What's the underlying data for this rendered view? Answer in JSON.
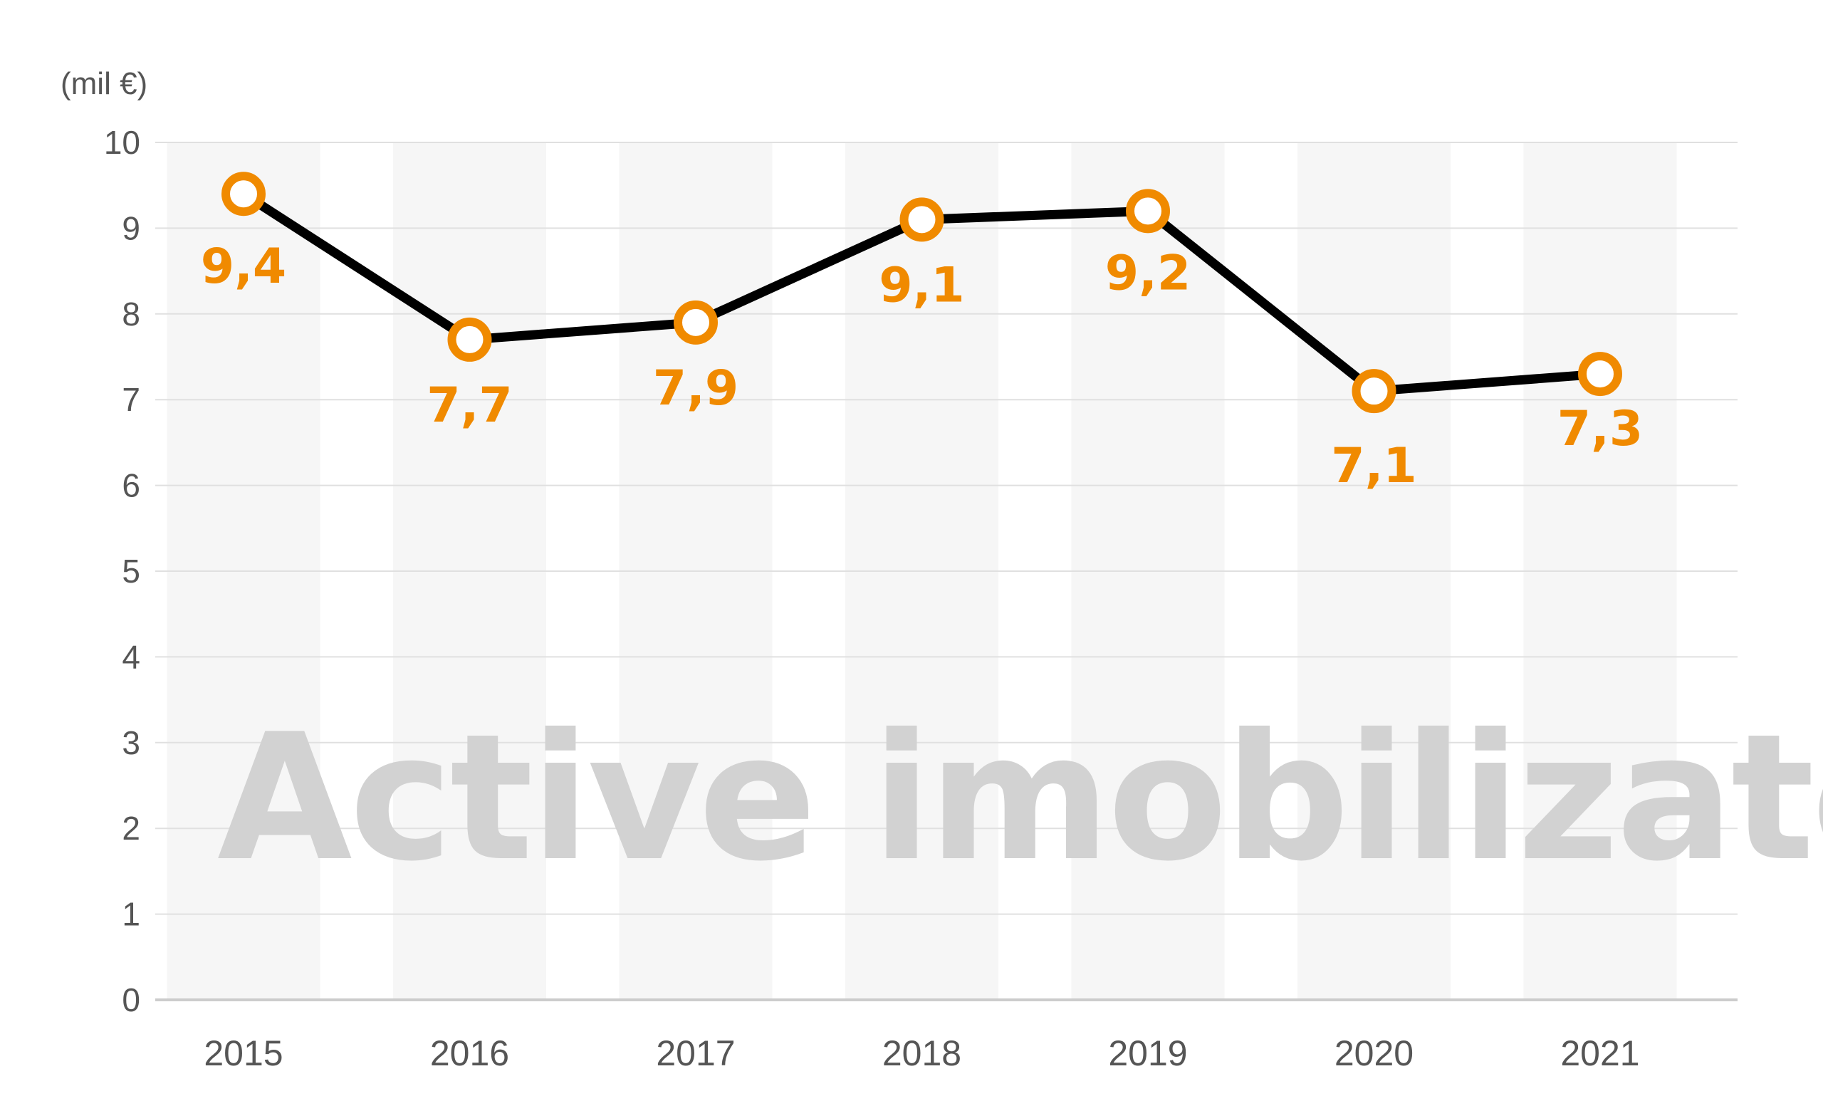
{
  "chart_data": {
    "type": "line",
    "unit_label": "(mil €)",
    "title_watermark": "Active imobilizate",
    "categories": [
      "2015",
      "2016",
      "2017",
      "2018",
      "2019",
      "2020",
      "2021"
    ],
    "y_ticks": [
      "0",
      "1",
      "2",
      "3",
      "4",
      "5",
      "6",
      "7",
      "8",
      "9",
      "10"
    ],
    "ylim": [
      0,
      10
    ],
    "series": [
      {
        "values": [
          9.4,
          7.7,
          7.9,
          9.1,
          9.2,
          7.1,
          7.3
        ],
        "labels": [
          "9,4",
          "7,7",
          "7,9",
          "9,1",
          "9,2",
          "7,1",
          "7,3"
        ]
      }
    ],
    "grid": true,
    "colors": {
      "line": "#000000",
      "marker": "#f08a00",
      "data_label": "#f08a00",
      "band": "#f6f6f6",
      "grid": "#e0e0e0",
      "watermark": "#d2d2d2"
    }
  }
}
